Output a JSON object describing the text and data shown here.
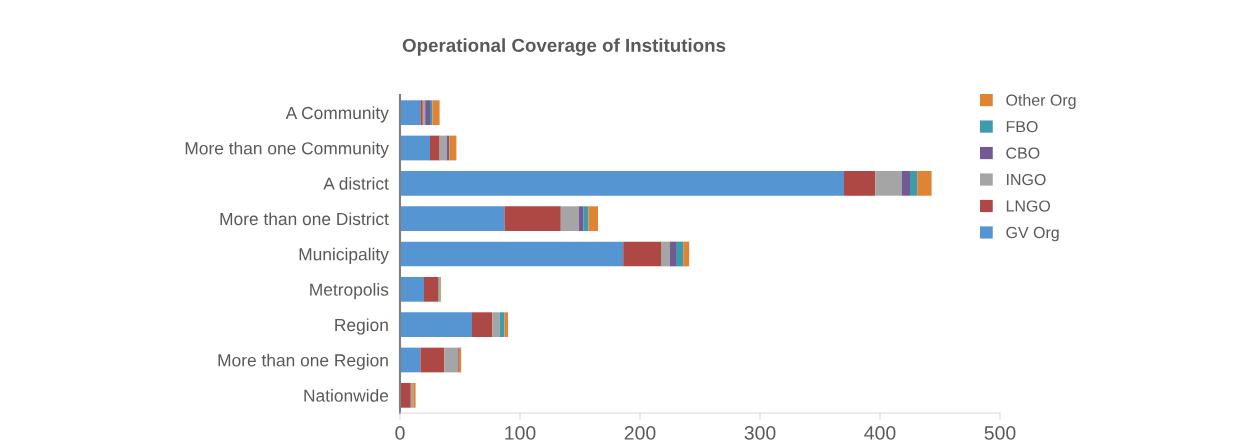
{
  "chart_data": {
    "type": "bar",
    "title": "Operational Coverage of Institutions",
    "orientation": "horizontal",
    "stacked": true,
    "categories": [
      "A Community",
      "More than one Community",
      "A district",
      "More than one District",
      "Municipality",
      "Metropolis",
      "Region",
      "More than one Region",
      "Nationwide"
    ],
    "series": [
      {
        "name": "GV Org",
        "color": "#5596d2",
        "values": [
          17,
          25,
          370,
          87,
          186,
          20,
          60,
          17,
          null
        ]
      },
      {
        "name": "LNGO",
        "color": "#ad4844",
        "values": [
          2,
          8,
          26,
          47,
          32,
          12,
          17,
          20,
          9
        ]
      },
      {
        "name": "INGO",
        "color": "#a5a5a5",
        "values": [
          2,
          6,
          22,
          15,
          7,
          null,
          6,
          11,
          2
        ]
      },
      {
        "name": "CBO",
        "color": "#745a94",
        "values": [
          4,
          2,
          7,
          4,
          5,
          null,
          null,
          1,
          null
        ]
      },
      {
        "name": "FBO",
        "color": "#3e9bad",
        "values": [
          2,
          null,
          6,
          4,
          6,
          1,
          4,
          null,
          null
        ]
      },
      {
        "name": "Other Org",
        "color": "#df8433",
        "values": [
          6,
          6,
          12,
          8,
          5,
          1,
          3,
          2,
          2
        ]
      }
    ],
    "xlim": [
      0,
      500
    ],
    "xticks": [
      0,
      100,
      200,
      300,
      400,
      500
    ],
    "legend": "right",
    "grid": false
  }
}
